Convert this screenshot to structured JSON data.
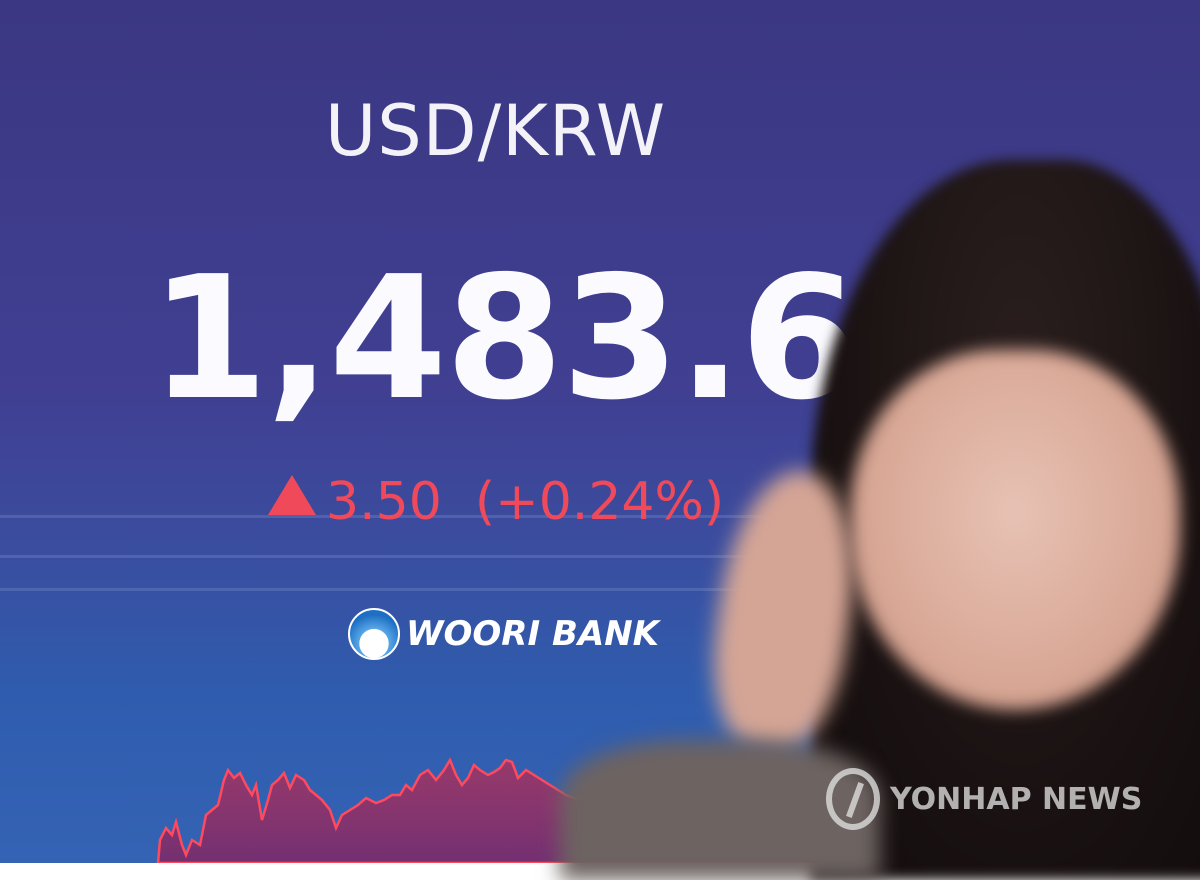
{
  "board": {
    "pair": "USD/KRW",
    "rate": "1,483.60",
    "change": "3.50",
    "change_pct": "(+0.24%)",
    "direction_icon": "up-triangle-icon",
    "bank_name": "WOORI BANK"
  },
  "watermark": "YONHAP NEWS",
  "colors": {
    "up": "#f04a5a",
    "screen": "#3b3782"
  }
}
